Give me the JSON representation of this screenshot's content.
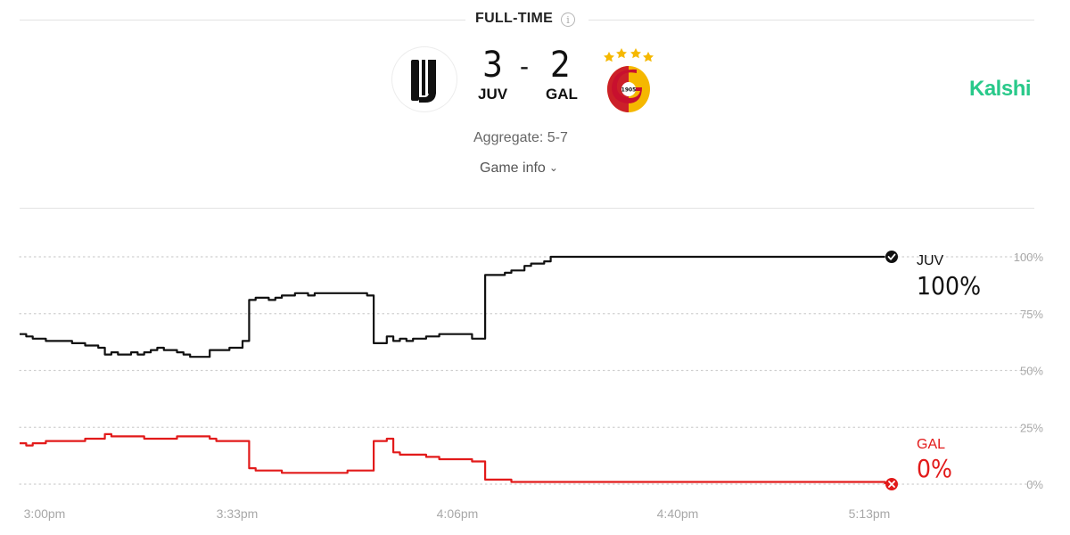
{
  "header": {
    "status": "FULL-TIME",
    "info_glyph": "i",
    "home": {
      "abbr": "JUV",
      "score": "3",
      "crest_icon": "juventus-crest"
    },
    "away": {
      "abbr": "GAL",
      "score": "2",
      "crest_icon": "galatasaray-crest",
      "crest_year": "1905"
    },
    "separator": "-",
    "aggregate": "Aggregate: 5-7",
    "game_info": "Game info",
    "brand": "Kalshi",
    "colors": {
      "brand": "#29c98a",
      "home_line": "#111111",
      "away_line": "#e21a1a"
    }
  },
  "chart_data": {
    "type": "line",
    "x_ticks": [
      "3:00pm",
      "3:33pm",
      "4:06pm",
      "4:40pm",
      "5:13pm"
    ],
    "x_range_minutes": [
      0,
      133
    ],
    "y_ticks": [
      "100%",
      "75%",
      "50%",
      "25%",
      "0%"
    ],
    "ylim": [
      0,
      100
    ],
    "grid": "horizontal-dotted",
    "series": [
      {
        "name": "JUV",
        "final_label": "100%",
        "color": "#111111",
        "end_marker": "check-icon",
        "x": [
          0,
          1,
          2,
          4,
          6,
          8,
          10,
          12,
          13,
          14,
          15,
          17,
          18,
          19,
          20,
          21,
          22,
          24,
          25,
          26,
          27,
          28,
          29,
          30,
          32,
          34,
          35,
          36,
          37,
          38,
          39,
          40,
          41,
          42,
          43,
          44,
          45,
          46,
          47,
          49,
          50,
          51,
          52,
          53,
          54,
          56,
          57,
          58,
          59,
          60,
          62,
          64,
          65,
          67,
          69,
          71,
          73,
          74,
          75,
          76,
          77,
          78,
          79,
          80,
          81,
          82,
          83,
          84,
          85,
          86,
          87,
          88,
          89,
          90,
          91,
          92,
          93,
          94,
          95,
          96,
          97,
          98,
          100,
          102,
          104,
          106,
          108,
          110,
          112,
          114,
          116,
          118,
          120,
          122,
          124,
          126,
          128,
          130,
          132
        ],
        "y": [
          66,
          65,
          64,
          63,
          63,
          62,
          61,
          60,
          57,
          58,
          57,
          58,
          57,
          58,
          59,
          60,
          59,
          58,
          57,
          56,
          56,
          56,
          59,
          59,
          60,
          63,
          81,
          82,
          82,
          81,
          82,
          83,
          83,
          84,
          84,
          83,
          84,
          84,
          84,
          84,
          84,
          84,
          84,
          83,
          62,
          65,
          63,
          64,
          63,
          64,
          65,
          66,
          66,
          66,
          64,
          92,
          92,
          93,
          94,
          94,
          96,
          97,
          97,
          98,
          100,
          100,
          100,
          100,
          100,
          100,
          100,
          100,
          100,
          100,
          100,
          100,
          100,
          100,
          100,
          100,
          100,
          100,
          100,
          100,
          100,
          100,
          100,
          100,
          100,
          100,
          100,
          100,
          100,
          100,
          100,
          100,
          100,
          100,
          100
        ]
      },
      {
        "name": "GAL",
        "final_label": "0%",
        "color": "#e21a1a",
        "end_marker": "cross-icon",
        "x": [
          0,
          1,
          2,
          4,
          6,
          8,
          10,
          12,
          13,
          14,
          15,
          17,
          18,
          19,
          20,
          21,
          22,
          24,
          25,
          26,
          27,
          28,
          29,
          30,
          32,
          34,
          35,
          36,
          37,
          38,
          39,
          40,
          41,
          42,
          43,
          44,
          45,
          46,
          47,
          49,
          50,
          51,
          52,
          53,
          54,
          56,
          57,
          58,
          59,
          60,
          62,
          64,
          65,
          67,
          69,
          71,
          73,
          74,
          75,
          76,
          77,
          78,
          79,
          80,
          81,
          82,
          83,
          84,
          85,
          86,
          87,
          88,
          89,
          90,
          91,
          92,
          93,
          94,
          95,
          96,
          97,
          98,
          100,
          102,
          104,
          106,
          108,
          110,
          112,
          114,
          116,
          118,
          120,
          122,
          124,
          126,
          128,
          130,
          132
        ],
        "y": [
          18,
          17,
          18,
          19,
          19,
          19,
          20,
          20,
          22,
          21,
          21,
          21,
          21,
          20,
          20,
          20,
          20,
          21,
          21,
          21,
          21,
          21,
          20,
          19,
          19,
          19,
          7,
          6,
          6,
          6,
          6,
          5,
          5,
          5,
          5,
          5,
          5,
          5,
          5,
          5,
          6,
          6,
          6,
          6,
          19,
          20,
          14,
          13,
          13,
          13,
          12,
          11,
          11,
          11,
          10,
          2,
          2,
          2,
          1,
          1,
          1,
          1,
          1,
          1,
          1,
          1,
          1,
          1,
          1,
          1,
          1,
          1,
          1,
          1,
          1,
          1,
          1,
          1,
          1,
          1,
          1,
          1,
          1,
          1,
          1,
          1,
          1,
          1,
          1,
          1,
          1,
          1,
          1,
          1,
          1,
          1,
          1,
          1,
          0
        ]
      }
    ]
  }
}
